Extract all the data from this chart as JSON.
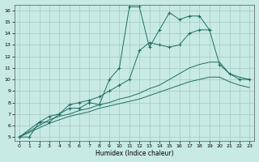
{
  "xlabel": "Humidex (Indice chaleur)",
  "background_color": "#c8eae4",
  "grid_color": "#a8c8c2",
  "line_color": "#1e6e64",
  "xlim": [
    -0.5,
    23.5
  ],
  "ylim": [
    4.7,
    16.5
  ],
  "xticks": [
    0,
    1,
    2,
    3,
    4,
    5,
    6,
    7,
    8,
    9,
    10,
    11,
    12,
    13,
    14,
    15,
    16,
    17,
    18,
    19,
    20,
    21,
    22,
    23
  ],
  "yticks": [
    5,
    6,
    7,
    8,
    9,
    10,
    11,
    12,
    13,
    14,
    15,
    16
  ],
  "series": [
    {
      "x": [
        0,
        1,
        2,
        3,
        4,
        5,
        6,
        7,
        8,
        9,
        10,
        11,
        12,
        13,
        14,
        15,
        16,
        17,
        18,
        19,
        20,
        21,
        22,
        23
      ],
      "y": [
        5,
        5,
        6.3,
        6.3,
        7.0,
        7.5,
        7.5,
        8.0,
        7.8,
        10.0,
        11.0,
        16.3,
        16.3,
        12.8,
        14.3,
        15.8,
        15.2,
        15.5,
        15.5,
        14.3,
        null,
        null,
        null,
        null
      ],
      "has_markers": true
    },
    {
      "x": [
        0,
        2,
        3,
        4,
        5,
        6,
        7,
        8,
        9,
        10,
        11,
        12,
        13,
        14,
        15,
        16,
        17,
        18,
        19,
        20,
        21,
        22,
        23
      ],
      "y": [
        5,
        6.3,
        6.8,
        7.0,
        7.8,
        8.0,
        8.2,
        8.5,
        9.0,
        9.5,
        10.0,
        12.5,
        13.2,
        13.0,
        12.8,
        13.0,
        14.0,
        14.3,
        14.3,
        11.3,
        10.5,
        10.0,
        10.0
      ],
      "has_markers": true
    },
    {
      "x": [
        0,
        2,
        3,
        4,
        5,
        6,
        7,
        8,
        9,
        10,
        11,
        12,
        13,
        14,
        15,
        16,
        17,
        18,
        19,
        20,
        21,
        22,
        23
      ],
      "y": [
        5,
        6.0,
        6.5,
        6.8,
        7.0,
        7.3,
        7.5,
        7.8,
        8.0,
        8.3,
        8.5,
        8.8,
        9.2,
        9.5,
        10.0,
        10.5,
        11.0,
        11.3,
        11.5,
        11.5,
        10.5,
        10.2,
        10.0
      ],
      "has_markers": false
    },
    {
      "x": [
        0,
        2,
        3,
        4,
        5,
        6,
        7,
        8,
        9,
        10,
        11,
        12,
        13,
        14,
        15,
        16,
        17,
        18,
        19,
        20,
        21,
        22,
        23
      ],
      "y": [
        5,
        5.8,
        6.2,
        6.5,
        6.8,
        7.0,
        7.2,
        7.5,
        7.7,
        7.9,
        8.1,
        8.3,
        8.6,
        8.9,
        9.2,
        9.5,
        9.8,
        10.0,
        10.2,
        10.2,
        9.8,
        9.5,
        9.3
      ],
      "has_markers": false
    }
  ]
}
